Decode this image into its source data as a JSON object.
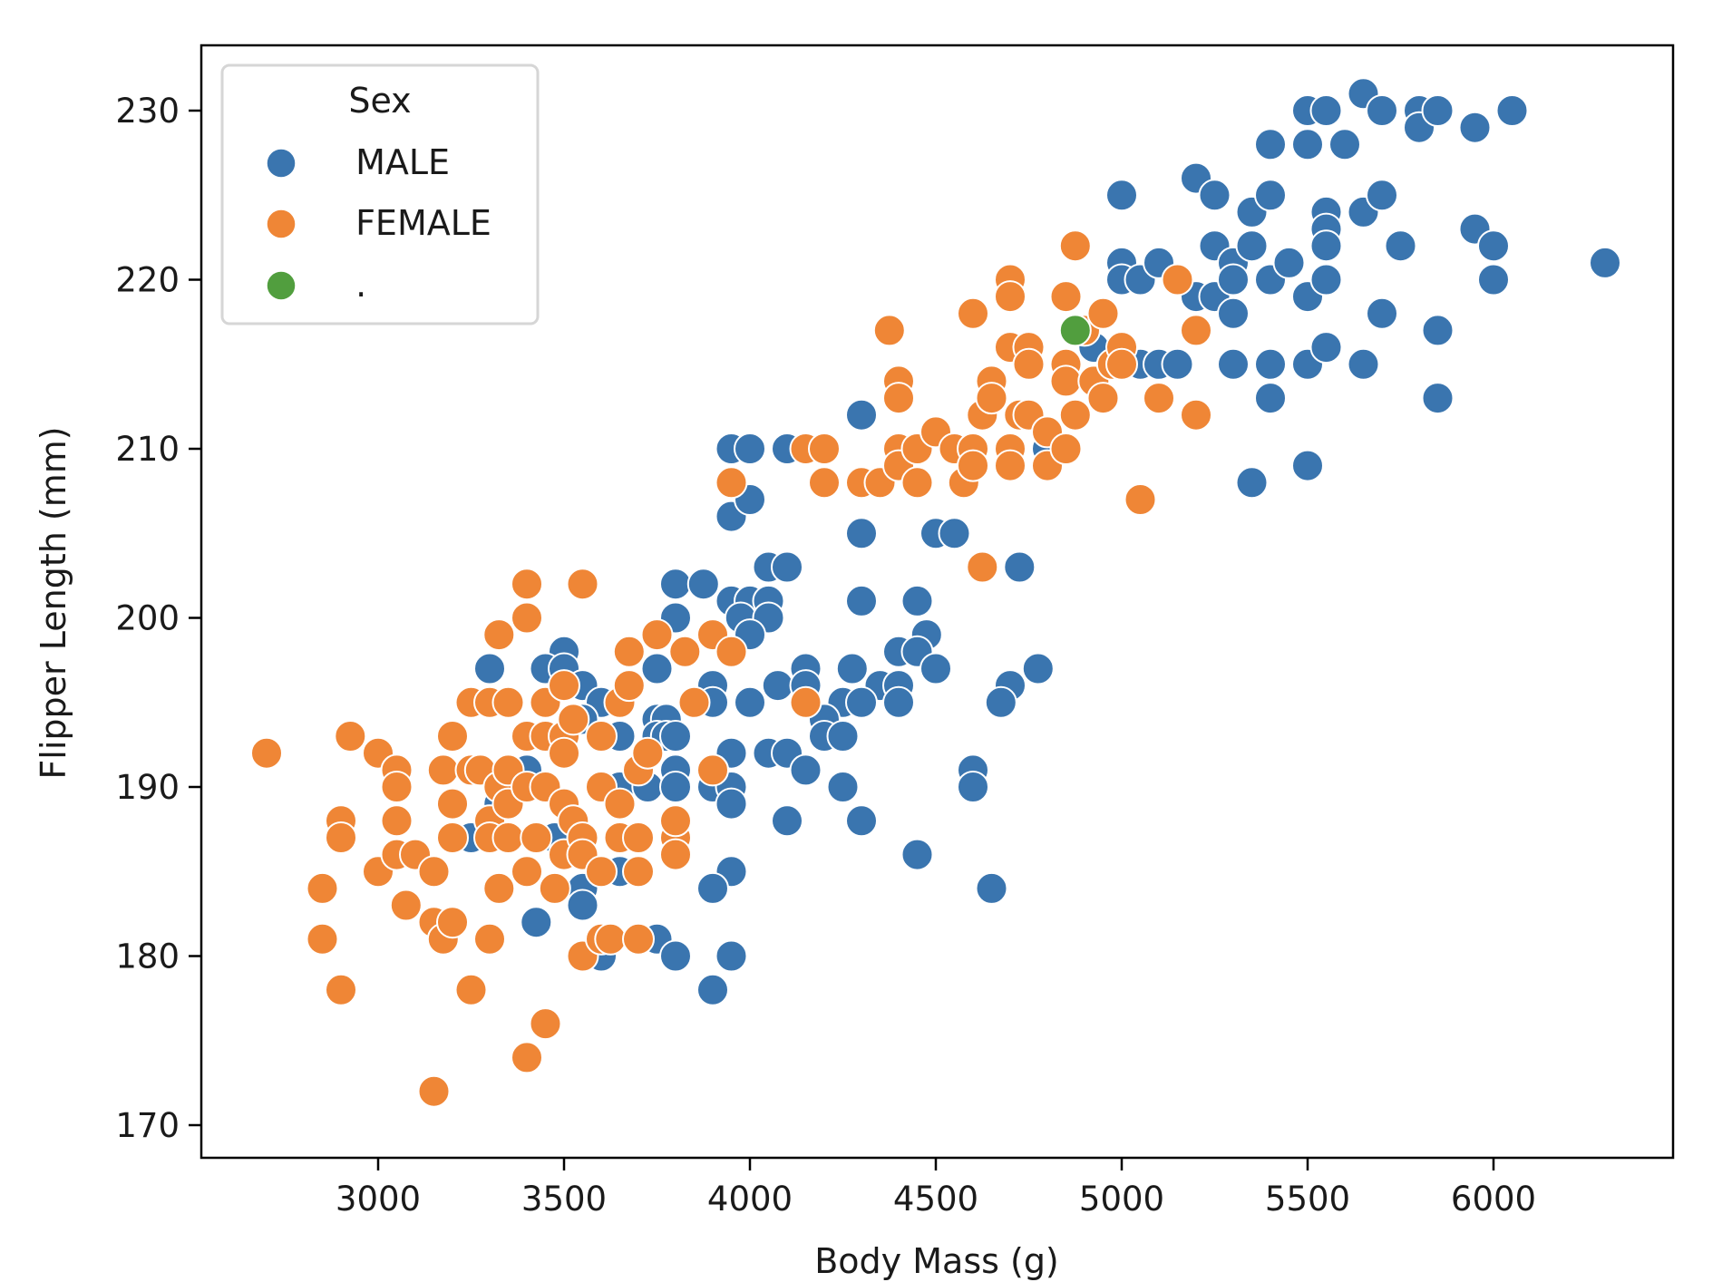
{
  "chart_data": {
    "type": "scatter",
    "title": "",
    "xlabel": "Body Mass (g)",
    "ylabel": "Flipper Length (mm)",
    "xlim": [
      2520,
      6490
    ],
    "ylim": [
      169,
      233.5
    ],
    "xticks": [
      3000,
      3500,
      4000,
      4500,
      5000,
      5500,
      6000
    ],
    "xtick_labels": [
      "3000",
      "3500",
      "4000",
      "4500",
      "5000",
      "5500",
      "6000"
    ],
    "yticks": [
      170,
      180,
      190,
      200,
      210,
      220,
      230
    ],
    "ytick_labels": [
      "170",
      "180",
      "190",
      "200",
      "210",
      "220",
      "230"
    ],
    "grid": false,
    "legend": {
      "title": "Sex",
      "placement": "top-left",
      "entries": [
        {
          "label": " MALE",
          "color": "#3a75af"
        },
        {
          "label": " FEMALE",
          "color": "#ef8636"
        },
        {
          "label": " .",
          "color": "#519e3e"
        }
      ]
    },
    "series": [
      {
        "name": "MALE",
        "color": "#3a75af",
        "points": [
          [
            5000,
            225
          ],
          [
            5200,
            226
          ],
          [
            5250,
            225
          ],
          [
            5400,
            228
          ],
          [
            5500,
            230
          ],
          [
            5550,
            230
          ],
          [
            5500,
            228
          ],
          [
            5600,
            228
          ],
          [
            5650,
            231
          ],
          [
            5700,
            230
          ],
          [
            5800,
            230
          ],
          [
            5800,
            229
          ],
          [
            5850,
            230
          ],
          [
            5950,
            229
          ],
          [
            6050,
            230
          ],
          [
            5350,
            224
          ],
          [
            5400,
            225
          ],
          [
            5550,
            224
          ],
          [
            5650,
            224
          ],
          [
            5700,
            225
          ],
          [
            5550,
            223
          ],
          [
            5550,
            222
          ],
          [
            5750,
            222
          ],
          [
            5950,
            223
          ],
          [
            6000,
            222
          ],
          [
            6000,
            220
          ],
          [
            6300,
            221
          ],
          [
            5000,
            221
          ],
          [
            5000,
            220
          ],
          [
            5050,
            220
          ],
          [
            5100,
            221
          ],
          [
            5200,
            219
          ],
          [
            5250,
            219
          ],
          [
            5250,
            222
          ],
          [
            5300,
            221
          ],
          [
            5300,
            220
          ],
          [
            5350,
            222
          ],
          [
            5400,
            220
          ],
          [
            5450,
            221
          ],
          [
            5300,
            218
          ],
          [
            5500,
            219
          ],
          [
            5550,
            220
          ],
          [
            5700,
            218
          ],
          [
            5850,
            217
          ],
          [
            4925,
            216
          ],
          [
            5050,
            215
          ],
          [
            5100,
            215
          ],
          [
            5150,
            215
          ],
          [
            5300,
            215
          ],
          [
            5400,
            215
          ],
          [
            5500,
            215
          ],
          [
            5550,
            216
          ],
          [
            5650,
            215
          ],
          [
            5400,
            213
          ],
          [
            5850,
            213
          ],
          [
            5350,
            208
          ],
          [
            5500,
            209
          ],
          [
            4800,
            210
          ],
          [
            4300,
            212
          ],
          [
            3950,
            210
          ],
          [
            4000,
            210
          ],
          [
            4100,
            210
          ],
          [
            3950,
            206
          ],
          [
            4000,
            207
          ],
          [
            4300,
            205
          ],
          [
            4500,
            205
          ],
          [
            4550,
            205
          ],
          [
            4050,
            203
          ],
          [
            4100,
            203
          ],
          [
            4725,
            203
          ],
          [
            3800,
            202
          ],
          [
            3875,
            202
          ],
          [
            3950,
            201
          ],
          [
            4000,
            201
          ],
          [
            4050,
            201
          ],
          [
            4300,
            201
          ],
          [
            4450,
            201
          ],
          [
            3800,
            200
          ],
          [
            3975,
            200
          ],
          [
            4050,
            200
          ],
          [
            4000,
            199
          ],
          [
            4475,
            199
          ],
          [
            3500,
            198
          ],
          [
            4400,
            198
          ],
          [
            4450,
            198
          ],
          [
            3300,
            197
          ],
          [
            3450,
            197
          ],
          [
            3500,
            197
          ],
          [
            3750,
            197
          ],
          [
            4150,
            197
          ],
          [
            4275,
            197
          ],
          [
            4500,
            197
          ],
          [
            4775,
            197
          ],
          [
            3550,
            196
          ],
          [
            3900,
            196
          ],
          [
            4075,
            196
          ],
          [
            4150,
            196
          ],
          [
            4350,
            196
          ],
          [
            4400,
            196
          ],
          [
            4700,
            196
          ],
          [
            3600,
            195
          ],
          [
            3900,
            195
          ],
          [
            4000,
            195
          ],
          [
            4250,
            195
          ],
          [
            4300,
            195
          ],
          [
            4400,
            195
          ],
          [
            4675,
            195
          ],
          [
            3550,
            194
          ],
          [
            3750,
            194
          ],
          [
            3775,
            194
          ],
          [
            4200,
            194
          ],
          [
            3650,
            193
          ],
          [
            3750,
            193
          ],
          [
            3775,
            193
          ],
          [
            3800,
            193
          ],
          [
            4200,
            193
          ],
          [
            4250,
            193
          ],
          [
            3950,
            192
          ],
          [
            4050,
            192
          ],
          [
            4100,
            192
          ],
          [
            3400,
            191
          ],
          [
            3800,
            191
          ],
          [
            3900,
            191
          ],
          [
            4150,
            191
          ],
          [
            4600,
            191
          ],
          [
            3650,
            190
          ],
          [
            3725,
            190
          ],
          [
            3800,
            190
          ],
          [
            3900,
            190
          ],
          [
            3950,
            190
          ],
          [
            4250,
            190
          ],
          [
            4600,
            190
          ],
          [
            3325,
            189
          ],
          [
            3950,
            189
          ],
          [
            3250,
            187
          ],
          [
            3475,
            187
          ],
          [
            4100,
            188
          ],
          [
            4300,
            188
          ],
          [
            3650,
            185
          ],
          [
            3950,
            185
          ],
          [
            4450,
            186
          ],
          [
            3550,
            184
          ],
          [
            3900,
            184
          ],
          [
            4650,
            184
          ],
          [
            3550,
            183
          ],
          [
            3425,
            182
          ],
          [
            3750,
            181
          ],
          [
            3600,
            180
          ],
          [
            3800,
            180
          ],
          [
            3950,
            180
          ],
          [
            3900,
            178
          ]
        ]
      },
      {
        "name": "FEMALE",
        "color": "#ef8636",
        "points": [
          [
            2700,
            192
          ],
          [
            2850,
            184
          ],
          [
            2850,
            181
          ],
          [
            2900,
            188
          ],
          [
            2900,
            187
          ],
          [
            2900,
            178
          ],
          [
            2925,
            193
          ],
          [
            3000,
            192
          ],
          [
            3000,
            185
          ],
          [
            3050,
            191
          ],
          [
            3050,
            190
          ],
          [
            3050,
            188
          ],
          [
            3050,
            186
          ],
          [
            3075,
            183
          ],
          [
            3100,
            186
          ],
          [
            3150,
            185
          ],
          [
            3150,
            182
          ],
          [
            3150,
            172
          ],
          [
            3175,
            191
          ],
          [
            3175,
            181
          ],
          [
            3200,
            193
          ],
          [
            3200,
            189
          ],
          [
            3200,
            187
          ],
          [
            3200,
            182
          ],
          [
            3250,
            195
          ],
          [
            3250,
            191
          ],
          [
            3250,
            178
          ],
          [
            3275,
            191
          ],
          [
            3300,
            195
          ],
          [
            3300,
            188
          ],
          [
            3300,
            187
          ],
          [
            3300,
            181
          ],
          [
            3325,
            199
          ],
          [
            3325,
            190
          ],
          [
            3325,
            184
          ],
          [
            3350,
            195
          ],
          [
            3350,
            191
          ],
          [
            3350,
            189
          ],
          [
            3350,
            187
          ],
          [
            3400,
            202
          ],
          [
            3400,
            200
          ],
          [
            3400,
            193
          ],
          [
            3400,
            190
          ],
          [
            3400,
            185
          ],
          [
            3400,
            174
          ],
          [
            3425,
            187
          ],
          [
            3450,
            195
          ],
          [
            3450,
            193
          ],
          [
            3450,
            190
          ],
          [
            3450,
            176
          ],
          [
            3475,
            184
          ],
          [
            3500,
            196
          ],
          [
            3500,
            193
          ],
          [
            3500,
            192
          ],
          [
            3500,
            189
          ],
          [
            3500,
            186
          ],
          [
            3525,
            194
          ],
          [
            3525,
            188
          ],
          [
            3550,
            202
          ],
          [
            3550,
            187
          ],
          [
            3550,
            186
          ],
          [
            3550,
            180
          ],
          [
            3600,
            190
          ],
          [
            3600,
            193
          ],
          [
            3600,
            185
          ],
          [
            3600,
            181
          ],
          [
            3625,
            181
          ],
          [
            3650,
            195
          ],
          [
            3650,
            189
          ],
          [
            3650,
            187
          ],
          [
            3675,
            198
          ],
          [
            3675,
            196
          ],
          [
            3700,
            187
          ],
          [
            3700,
            185
          ],
          [
            3700,
            191
          ],
          [
            3700,
            181
          ],
          [
            3725,
            192
          ],
          [
            3750,
            199
          ],
          [
            3800,
            187
          ],
          [
            3800,
            186
          ],
          [
            3800,
            188
          ],
          [
            3825,
            198
          ],
          [
            3850,
            195
          ],
          [
            3900,
            199
          ],
          [
            3900,
            191
          ],
          [
            3950,
            198
          ],
          [
            3950,
            208
          ],
          [
            4150,
            195
          ],
          [
            4150,
            210
          ],
          [
            4200,
            210
          ],
          [
            4200,
            208
          ],
          [
            4300,
            208
          ],
          [
            4350,
            208
          ],
          [
            4375,
            217
          ],
          [
            4400,
            214
          ],
          [
            4400,
            213
          ],
          [
            4400,
            210
          ],
          [
            4400,
            209
          ],
          [
            4450,
            210
          ],
          [
            4450,
            208
          ],
          [
            4500,
            211
          ],
          [
            4550,
            210
          ],
          [
            4575,
            208
          ],
          [
            4600,
            218
          ],
          [
            4600,
            210
          ],
          [
            4600,
            209
          ],
          [
            4625,
            203
          ],
          [
            4625,
            212
          ],
          [
            4650,
            214
          ],
          [
            4650,
            213
          ],
          [
            4700,
            220
          ],
          [
            4700,
            219
          ],
          [
            4700,
            216
          ],
          [
            4700,
            210
          ],
          [
            4700,
            209
          ],
          [
            4725,
            212
          ],
          [
            4750,
            216
          ],
          [
            4750,
            215
          ],
          [
            4750,
            212
          ],
          [
            4800,
            211
          ],
          [
            4800,
            209
          ],
          [
            4850,
            219
          ],
          [
            4850,
            215
          ],
          [
            4850,
            214
          ],
          [
            4850,
            210
          ],
          [
            4875,
            222
          ],
          [
            4875,
            212
          ],
          [
            4900,
            217
          ],
          [
            4925,
            214
          ],
          [
            4950,
            218
          ],
          [
            4950,
            213
          ],
          [
            4975,
            215
          ],
          [
            5000,
            216
          ],
          [
            5000,
            215
          ],
          [
            5050,
            207
          ],
          [
            5100,
            213
          ],
          [
            5150,
            220
          ],
          [
            5200,
            217
          ],
          [
            5200,
            212
          ]
        ]
      },
      {
        "name": ".",
        "color": "#519e3e",
        "points": [
          [
            4875,
            217
          ]
        ]
      }
    ]
  }
}
